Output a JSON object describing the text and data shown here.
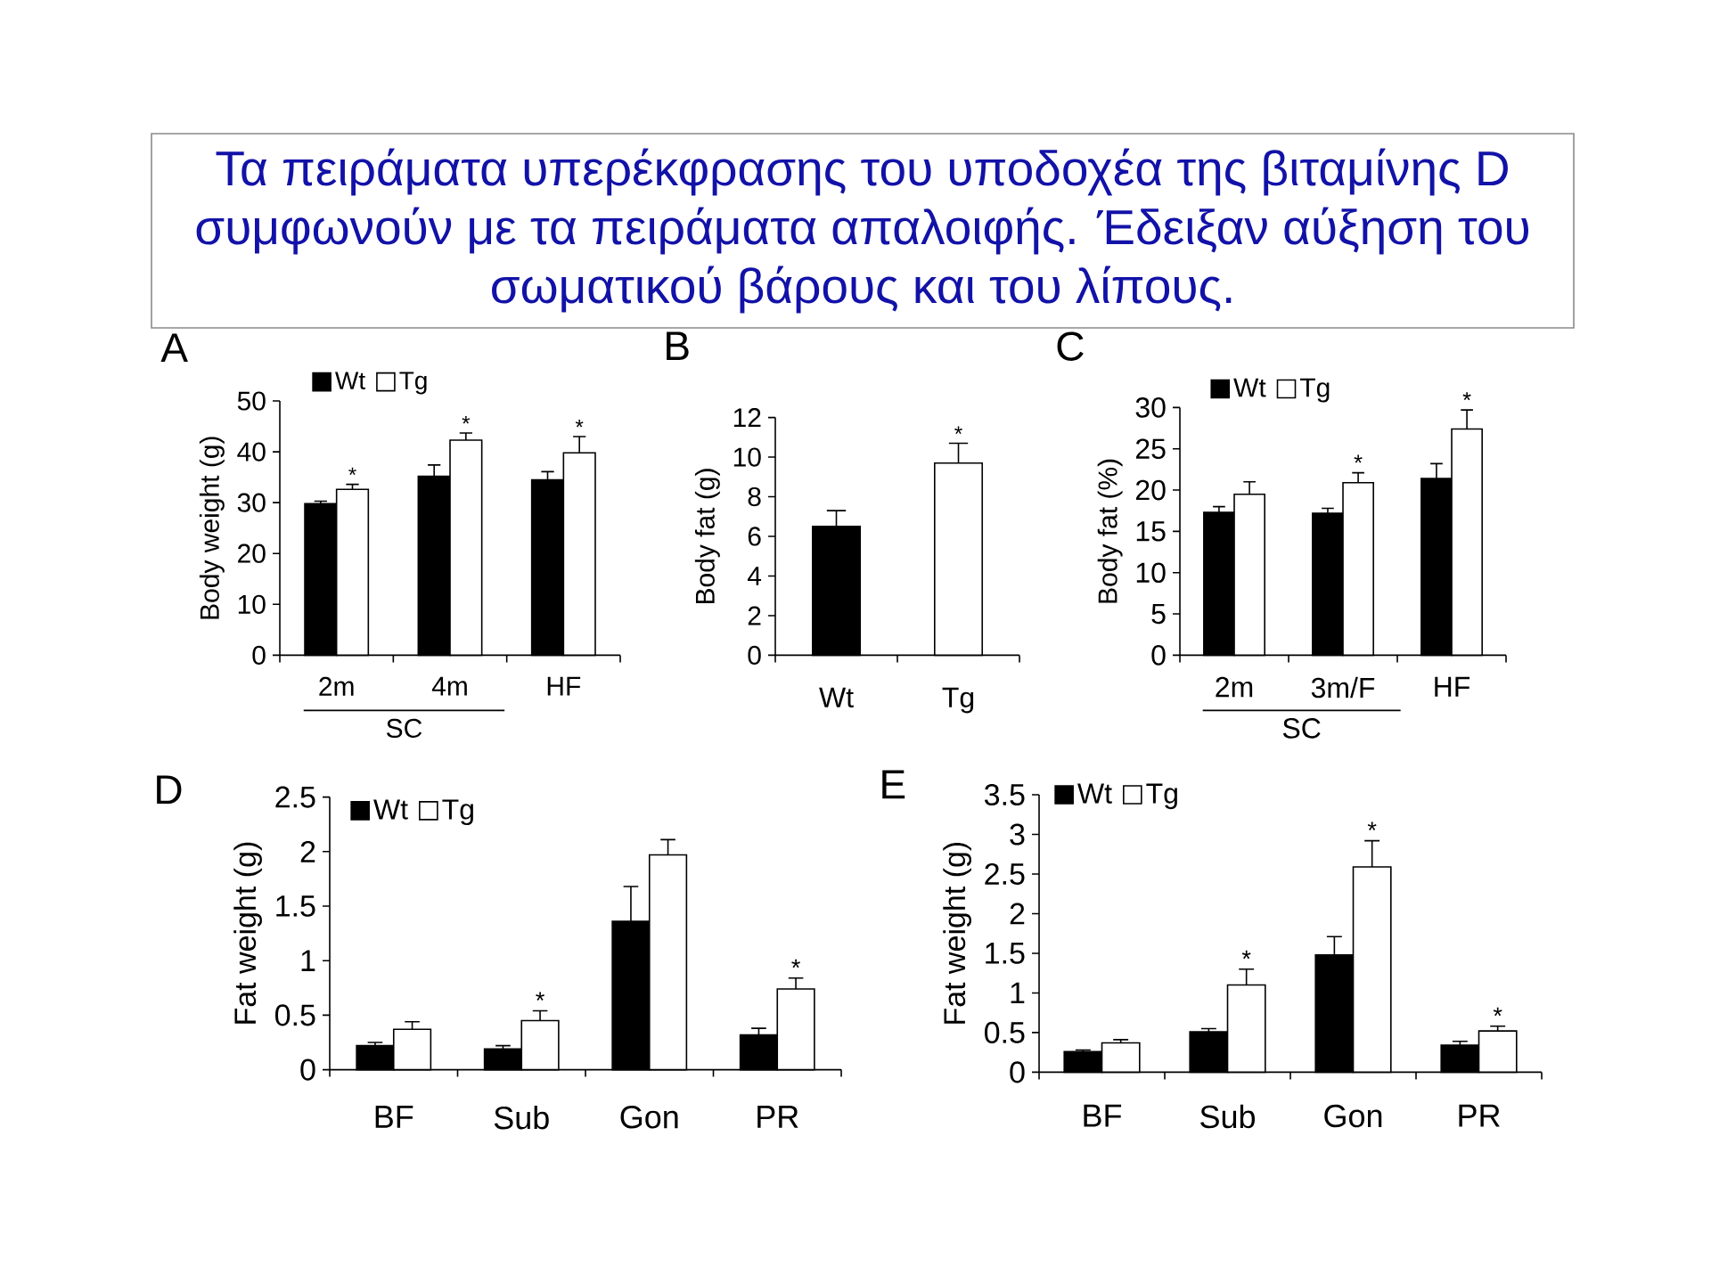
{
  "chart_data": [
    {
      "type": "other",
      "title": "Τα πειράματα υπερέκφρασης του υποδοχέα της βιταμίνης D συμφωνούν με τα πειράματα απαλοιφής. Έδειξαν αύξηση του σωματικού βάρους και του λίπους."
    },
    {
      "type": "bar",
      "title": "A",
      "ylabel": "Body weight (g)",
      "categories": [
        "2m",
        "4m",
        "HF"
      ],
      "annotations": [
        "SC"
      ],
      "series": [
        {
          "name": "Wt",
          "color": "#000000",
          "values": [
            29.8,
            35.2,
            34.5
          ],
          "errors": [
            [
              29.8,
              30.3
            ],
            [
              35.2,
              37.4
            ],
            [
              34.5,
              36.1
            ]
          ]
        },
        {
          "name": "Tg",
          "color": "#ffffff",
          "values": [
            32.6,
            42.3,
            39.8
          ],
          "errors": [
            [
              32.6,
              33.6
            ],
            [
              42.3,
              43.7
            ],
            [
              39.8,
              43
            ]
          ],
          "value_labels": [
            "*",
            "*",
            "*"
          ]
        }
      ],
      "ylim": [
        0,
        50
      ],
      "yticks": [
        0,
        10,
        20,
        30,
        40,
        50
      ],
      "legend": "top left"
    },
    {
      "type": "bar",
      "title": "B",
      "ylabel": "Body fat (g)",
      "categories": [
        "Wt",
        "Tg"
      ],
      "values": [
        6.5,
        9.7
      ],
      "colors": [
        "#000000",
        "#ffffff"
      ],
      "errors": [
        [
          6.5,
          7.3
        ],
        [
          9.7,
          10.7
        ]
      ],
      "value_labels": [
        null,
        "*"
      ],
      "ylim": [
        0,
        12
      ],
      "yticks": [
        0,
        2,
        4,
        6,
        8,
        10,
        12
      ]
    },
    {
      "type": "bar",
      "title": "C",
      "ylabel": "Body fat (%)",
      "categories": [
        "2m",
        "3m/F",
        "HF"
      ],
      "annotations": [
        "SC"
      ],
      "series": [
        {
          "name": "Wt",
          "color": "#000000",
          "values": [
            17.3,
            17.2,
            21.4
          ],
          "errors": [
            [
              17.3,
              18.0
            ],
            [
              17.2,
              17.8
            ],
            [
              21.4,
              23.2
            ]
          ]
        },
        {
          "name": "Tg",
          "color": "#ffffff",
          "values": [
            19.5,
            20.9,
            27.4
          ],
          "errors": [
            [
              19.5,
              21.0
            ],
            [
              20.9,
              22.1
            ],
            [
              27.4,
              29.7
            ]
          ],
          "value_labels": [
            null,
            "*",
            "*"
          ]
        }
      ],
      "ylim": [
        0,
        30
      ],
      "yticks": [
        0,
        5,
        10,
        15,
        20,
        25,
        30
      ],
      "legend": "top left"
    },
    {
      "type": "bar",
      "title": "D",
      "ylabel": "Fat weight (g)",
      "categories": [
        "BF",
        "Sub",
        "Gon",
        "PR"
      ],
      "series": [
        {
          "name": "Wt",
          "color": "#000000",
          "values": [
            0.22,
            0.19,
            1.36,
            0.32
          ],
          "errors": [
            [
              0.22,
              0.25
            ],
            [
              0.19,
              0.22
            ],
            [
              1.36,
              1.68
            ],
            [
              0.32,
              0.38
            ]
          ]
        },
        {
          "name": "Tg",
          "color": "#ffffff",
          "values": [
            0.37,
            0.45,
            1.97,
            0.74
          ],
          "errors": [
            [
              0.37,
              0.44
            ],
            [
              0.45,
              0.54
            ],
            [
              1.97,
              2.11
            ],
            [
              0.74,
              0.84
            ]
          ],
          "value_labels": [
            null,
            "*",
            null,
            "*"
          ]
        }
      ],
      "ylim": [
        0,
        2.5
      ],
      "yticks": [
        0,
        0.5,
        1,
        1.5,
        2,
        2.5
      ],
      "legend": "top left"
    },
    {
      "type": "bar",
      "title": "E",
      "ylabel": "Fat weight (g)",
      "categories": [
        "BF",
        "Sub",
        "Gon",
        "PR"
      ],
      "series": [
        {
          "name": "Wt",
          "color": "#000000",
          "values": [
            0.26,
            0.51,
            1.48,
            0.34
          ],
          "errors": [
            [
              0.26,
              0.28
            ],
            [
              0.51,
              0.55
            ],
            [
              1.48,
              1.71
            ],
            [
              0.34,
              0.39
            ]
          ]
        },
        {
          "name": "Tg",
          "color": "#ffffff",
          "values": [
            0.37,
            1.1,
            2.59,
            0.52
          ],
          "errors": [
            [
              0.37,
              0.41
            ],
            [
              1.1,
              1.3
            ],
            [
              2.59,
              2.92
            ],
            [
              0.52,
              0.58
            ]
          ],
          "value_labels": [
            null,
            "*",
            "*",
            "*"
          ]
        }
      ],
      "ylim": [
        0,
        3.5
      ],
      "yticks": [
        0,
        0.5,
        1,
        1.5,
        2,
        2.5,
        3,
        3.5
      ],
      "legend": "top left"
    }
  ]
}
